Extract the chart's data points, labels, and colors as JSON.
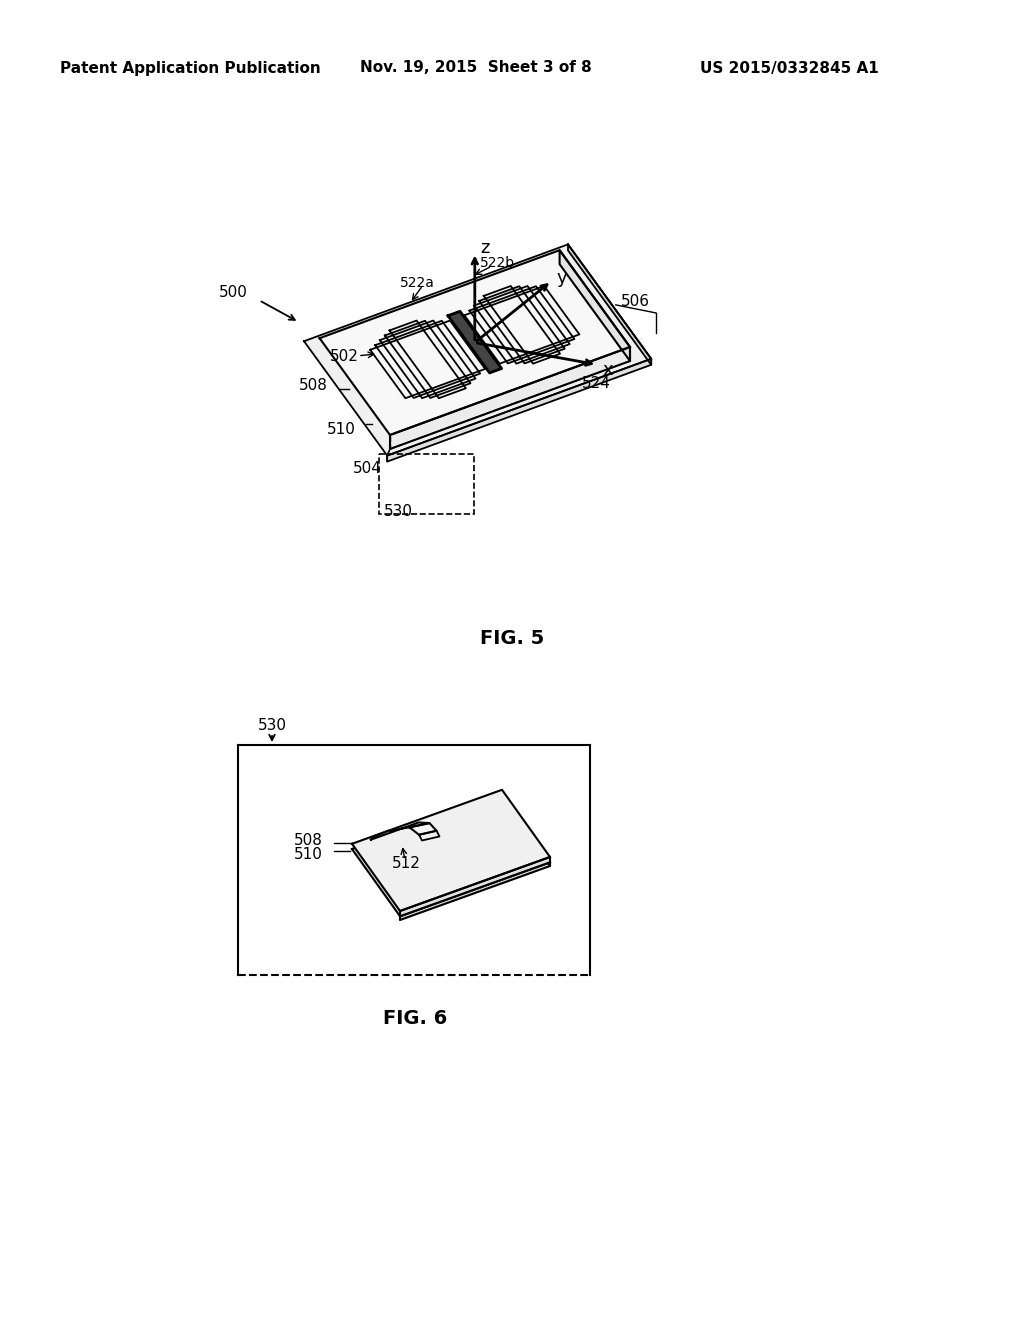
{
  "bg_color": "#ffffff",
  "header_left": "Patent Application Publication",
  "header_mid": "Nov. 19, 2015  Sheet 3 of 8",
  "header_right": "US 2015/0332845 A1",
  "fig5_label": "FIG. 5",
  "fig6_label": "FIG. 6"
}
